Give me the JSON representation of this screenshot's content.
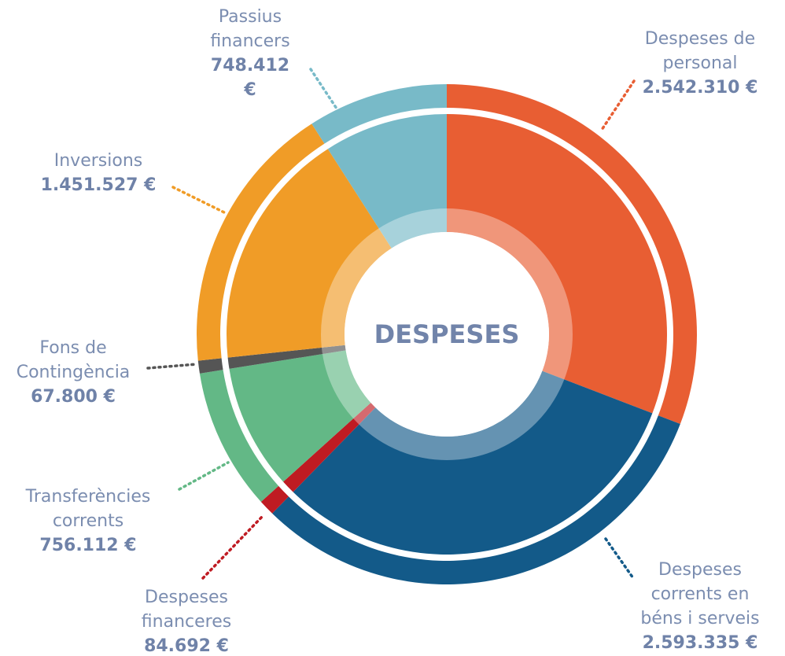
{
  "chart_data": {
    "type": "donut",
    "title": "DESPESES",
    "categories": [
      "Despeses de personal",
      "Despeses corrents en béns i serveis",
      "Despeses financeres",
      "Transferències corrents",
      "Fons de Contingència",
      "Inversions",
      "Passius financers"
    ],
    "values": [
      2542310,
      2593335,
      84692,
      756112,
      67800,
      1451527,
      748412
    ],
    "value_labels": [
      "2.542.310 €",
      "2.593.335 €",
      "84.692 €",
      "756.112 €",
      "67.800 €",
      "1.451.527 €",
      "748.412 €"
    ],
    "colors": [
      "#e85e33",
      "#135a89",
      "#bf1b22",
      "#63b886",
      "#555555",
      "#f09c27",
      "#78bac8"
    ]
  }
}
